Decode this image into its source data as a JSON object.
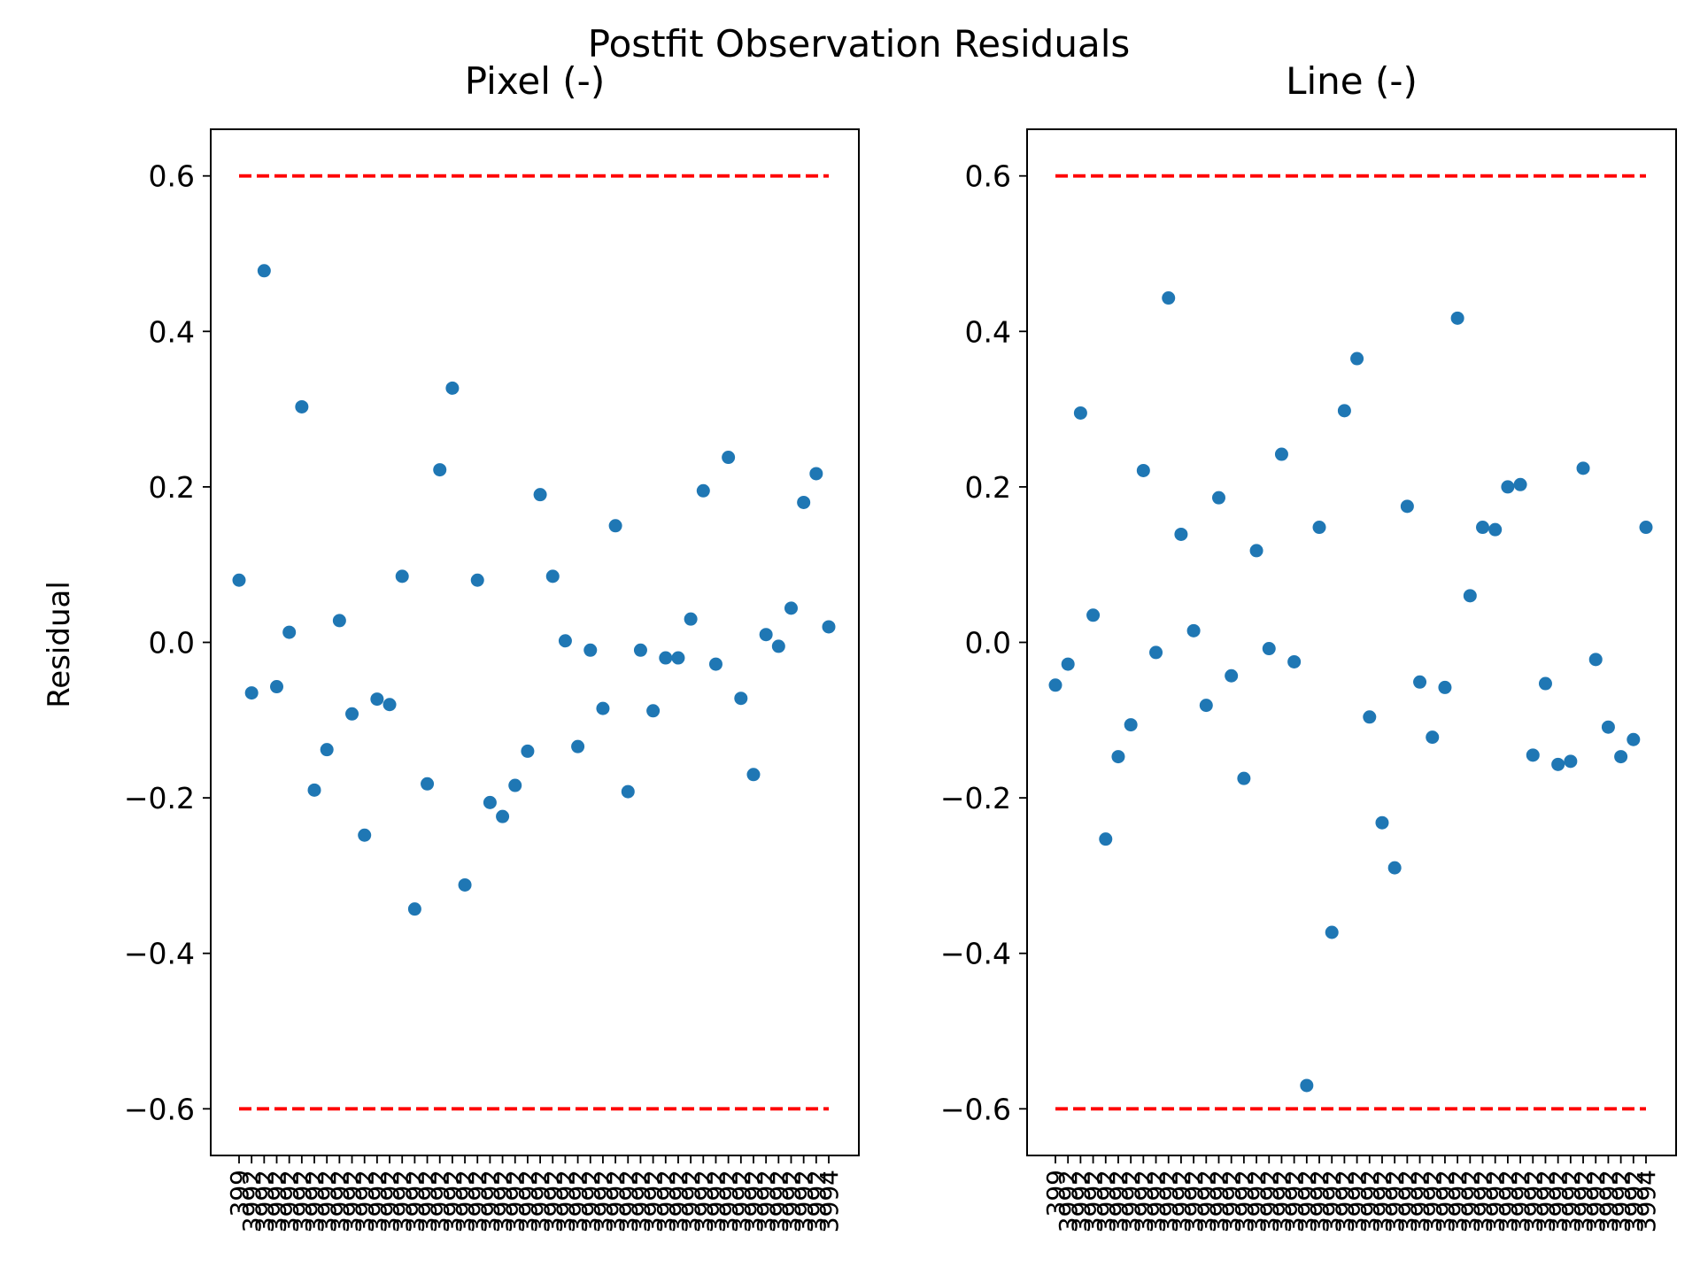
{
  "figure": {
    "suptitle": "Postfit Observation Residuals",
    "ylabel": "Residual"
  },
  "colors": {
    "points": "#1f77b4",
    "limits": "#ff0000",
    "axes": "#000000"
  },
  "chart_data": [
    {
      "type": "scatter",
      "title": "Pixel (-)",
      "ylabel": "Residual",
      "xlabel": "",
      "ylim": [
        -0.66,
        0.66
      ],
      "yticks": [
        0.6,
        0.4,
        0.2,
        0.0,
        -0.2,
        -0.4,
        -0.6
      ],
      "ytick_labels": [
        "0.6",
        "0.4",
        "0.2",
        "0.0",
        "−0.2",
        "−0.4",
        "−0.6"
      ],
      "threshold_lines": [
        0.6,
        -0.6
      ],
      "x_tick_label_first": "399",
      "x_tick_label_repeat": "3992",
      "x_tick_label_last": "3994",
      "values": [
        0.08,
        -0.065,
        0.478,
        -0.057,
        0.013,
        0.303,
        -0.19,
        -0.138,
        0.028,
        -0.092,
        -0.248,
        -0.073,
        -0.08,
        0.085,
        -0.343,
        -0.182,
        0.222,
        0.327,
        -0.312,
        0.08,
        -0.206,
        -0.224,
        -0.184,
        -0.14,
        0.19,
        0.085,
        0.002,
        -0.134,
        -0.01,
        -0.085,
        0.15,
        -0.192,
        -0.01,
        -0.088,
        -0.02,
        -0.02,
        0.03,
        0.195,
        -0.028,
        0.238,
        -0.072,
        -0.17,
        0.01,
        -0.005,
        0.044,
        0.18,
        0.217,
        0.02
      ]
    },
    {
      "type": "scatter",
      "title": "Line (-)",
      "xlabel": "",
      "ylim": [
        -0.66,
        0.66
      ],
      "yticks": [
        0.6,
        0.4,
        0.2,
        0.0,
        -0.2,
        -0.4,
        -0.6
      ],
      "ytick_labels": [
        "0.6",
        "0.4",
        "0.2",
        "0.0",
        "−0.2",
        "−0.4",
        "−0.6"
      ],
      "threshold_lines": [
        0.6,
        -0.6
      ],
      "x_tick_label_first": "399",
      "x_tick_label_repeat": "3992",
      "x_tick_label_last": "3994",
      "values": [
        -0.055,
        -0.028,
        0.295,
        0.035,
        -0.253,
        -0.147,
        -0.106,
        0.221,
        -0.013,
        0.443,
        0.139,
        0.015,
        -0.081,
        0.186,
        -0.043,
        -0.175,
        0.118,
        -0.008,
        0.242,
        -0.025,
        -0.57,
        0.148,
        -0.373,
        0.298,
        0.365,
        -0.096,
        -0.232,
        -0.29,
        0.175,
        -0.051,
        -0.122,
        -0.058,
        0.417,
        0.06,
        0.148,
        0.145,
        0.2,
        0.203,
        -0.145,
        -0.053,
        -0.157,
        -0.153,
        0.224,
        -0.022,
        -0.109,
        -0.147,
        -0.125,
        0.148
      ]
    }
  ]
}
